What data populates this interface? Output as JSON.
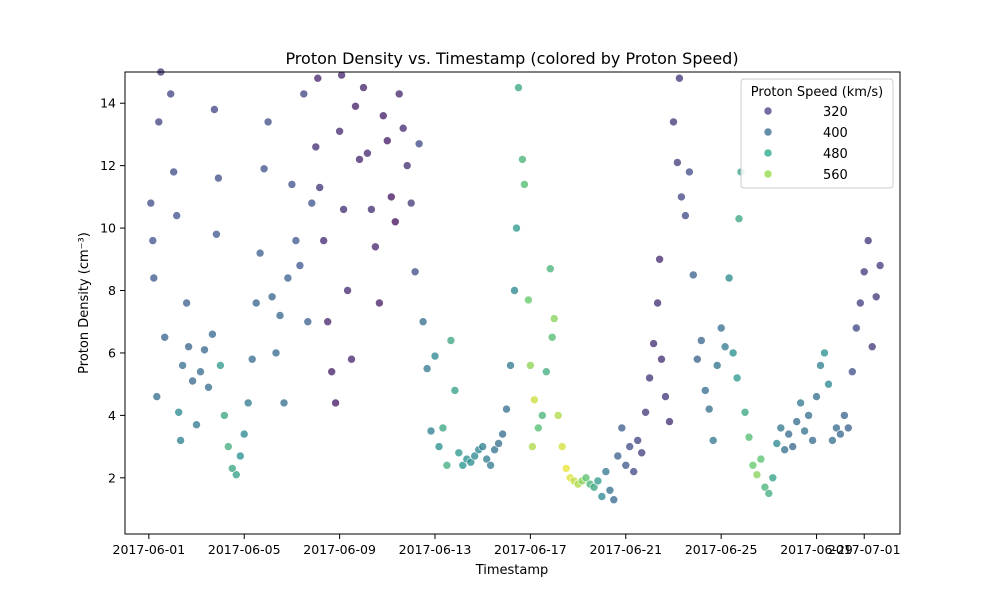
{
  "chart_data": {
    "type": "scatter",
    "title": "Proton Density vs. Timestamp (colored by Proton Speed)",
    "xlabel": "Timestamp",
    "ylabel": "Proton Density (cm⁻³)",
    "x_type": "date",
    "xlim": [
      "2017-05-31T00:00",
      "2017-07-02T12:00"
    ],
    "ylim": [
      0.2,
      15
    ],
    "x_ticks": [
      "2017-06-01",
      "2017-06-05",
      "2017-06-09",
      "2017-06-13",
      "2017-06-17",
      "2017-06-21",
      "2017-06-25",
      "2017-06-29",
      "2017-07-01"
    ],
    "y_ticks": [
      2,
      4,
      6,
      8,
      10,
      12,
      14
    ],
    "grid": false,
    "legend": {
      "title": "Proton Speed (km/s)",
      "placement": "top-right",
      "entries": [
        {
          "label": "320",
          "color": "#443983"
        },
        {
          "label": "400",
          "color": "#31688e"
        },
        {
          "label": "480",
          "color": "#21a585"
        },
        {
          "label": "560",
          "color": "#90d743"
        }
      ]
    },
    "colormap": "viridis",
    "speed_range": [
      290,
      600
    ],
    "point_opacity": 0.75,
    "points": [
      {
        "t": "2017-06-01T02:00",
        "d": 10.8,
        "s": 360
      },
      {
        "t": "2017-06-01T04:00",
        "d": 9.6,
        "s": 365
      },
      {
        "t": "2017-06-01T05:00",
        "d": 8.4,
        "s": 370
      },
      {
        "t": "2017-06-01T08:00",
        "d": 4.6,
        "s": 395
      },
      {
        "t": "2017-06-01T10:00",
        "d": 13.4,
        "s": 350
      },
      {
        "t": "2017-06-01T12:00",
        "d": 15.0,
        "s": 345
      },
      {
        "t": "2017-06-01T16:00",
        "d": 6.5,
        "s": 385
      },
      {
        "t": "2017-06-01T22:00",
        "d": 14.3,
        "s": 350
      },
      {
        "t": "2017-06-02T01:00",
        "d": 11.8,
        "s": 360
      },
      {
        "t": "2017-06-02T04:00",
        "d": 10.4,
        "s": 365
      },
      {
        "t": "2017-06-02T06:00",
        "d": 4.1,
        "s": 430
      },
      {
        "t": "2017-06-02T08:00",
        "d": 3.2,
        "s": 420
      },
      {
        "t": "2017-06-02T10:00",
        "d": 5.6,
        "s": 400
      },
      {
        "t": "2017-06-02T14:00",
        "d": 7.6,
        "s": 380
      },
      {
        "t": "2017-06-02T16:00",
        "d": 6.2,
        "s": 385
      },
      {
        "t": "2017-06-02T20:00",
        "d": 5.1,
        "s": 390
      },
      {
        "t": "2017-06-03T00:00",
        "d": 3.7,
        "s": 410
      },
      {
        "t": "2017-06-03T04:00",
        "d": 5.4,
        "s": 395
      },
      {
        "t": "2017-06-03T08:00",
        "d": 6.1,
        "s": 390
      },
      {
        "t": "2017-06-03T12:00",
        "d": 4.9,
        "s": 395
      },
      {
        "t": "2017-06-03T16:00",
        "d": 6.6,
        "s": 390
      },
      {
        "t": "2017-06-03T18:00",
        "d": 13.8,
        "s": 350
      },
      {
        "t": "2017-06-03T20:00",
        "d": 9.8,
        "s": 370
      },
      {
        "t": "2017-06-03T22:00",
        "d": 11.6,
        "s": 360
      },
      {
        "t": "2017-06-04T00:00",
        "d": 5.6,
        "s": 455
      },
      {
        "t": "2017-06-04T04:00",
        "d": 4.0,
        "s": 470
      },
      {
        "t": "2017-06-04T08:00",
        "d": 3.0,
        "s": 480
      },
      {
        "t": "2017-06-04T12:00",
        "d": 2.3,
        "s": 470
      },
      {
        "t": "2017-06-04T16:00",
        "d": 2.1,
        "s": 460
      },
      {
        "t": "2017-06-04T20:00",
        "d": 2.7,
        "s": 440
      },
      {
        "t": "2017-06-05T00:00",
        "d": 3.4,
        "s": 430
      },
      {
        "t": "2017-06-05T04:00",
        "d": 4.4,
        "s": 410
      },
      {
        "t": "2017-06-05T08:00",
        "d": 5.8,
        "s": 395
      },
      {
        "t": "2017-06-05T12:00",
        "d": 7.6,
        "s": 385
      },
      {
        "t": "2017-06-05T16:00",
        "d": 9.2,
        "s": 380
      },
      {
        "t": "2017-06-05T20:00",
        "d": 11.9,
        "s": 365
      },
      {
        "t": "2017-06-06T00:00",
        "d": 13.4,
        "s": 360
      },
      {
        "t": "2017-06-06T04:00",
        "d": 7.8,
        "s": 385
      },
      {
        "t": "2017-06-06T08:00",
        "d": 6.0,
        "s": 395
      },
      {
        "t": "2017-06-06T12:00",
        "d": 7.2,
        "s": 390
      },
      {
        "t": "2017-06-06T16:00",
        "d": 4.4,
        "s": 400
      },
      {
        "t": "2017-06-06T20:00",
        "d": 8.4,
        "s": 380
      },
      {
        "t": "2017-06-07T00:00",
        "d": 11.4,
        "s": 365
      },
      {
        "t": "2017-06-07T04:00",
        "d": 9.6,
        "s": 370
      },
      {
        "t": "2017-06-07T08:00",
        "d": 8.8,
        "s": 370
      },
      {
        "t": "2017-06-07T12:00",
        "d": 14.3,
        "s": 350
      },
      {
        "t": "2017-06-07T16:00",
        "d": 7.0,
        "s": 380
      },
      {
        "t": "2017-06-07T20:00",
        "d": 10.8,
        "s": 365
      },
      {
        "t": "2017-06-08T00:00",
        "d": 12.6,
        "s": 330
      },
      {
        "t": "2017-06-08T02:00",
        "d": 14.8,
        "s": 320
      },
      {
        "t": "2017-06-08T04:00",
        "d": 11.3,
        "s": 335
      },
      {
        "t": "2017-06-08T08:00",
        "d": 9.6,
        "s": 325
      },
      {
        "t": "2017-06-08T12:00",
        "d": 7.0,
        "s": 320
      },
      {
        "t": "2017-06-08T16:00",
        "d": 5.4,
        "s": 315
      },
      {
        "t": "2017-06-08T20:00",
        "d": 4.4,
        "s": 310
      },
      {
        "t": "2017-06-09T00:00",
        "d": 13.1,
        "s": 325
      },
      {
        "t": "2017-06-09T02:00",
        "d": 14.9,
        "s": 320
      },
      {
        "t": "2017-06-09T04:00",
        "d": 10.6,
        "s": 330
      },
      {
        "t": "2017-06-09T08:00",
        "d": 8.0,
        "s": 325
      },
      {
        "t": "2017-06-09T12:00",
        "d": 5.8,
        "s": 320
      },
      {
        "t": "2017-06-09T16:00",
        "d": 13.9,
        "s": 315
      },
      {
        "t": "2017-06-09T20:00",
        "d": 12.2,
        "s": 320
      },
      {
        "t": "2017-06-10T00:00",
        "d": 14.5,
        "s": 320
      },
      {
        "t": "2017-06-10T04:00",
        "d": 12.4,
        "s": 325
      },
      {
        "t": "2017-06-10T08:00",
        "d": 10.6,
        "s": 330
      },
      {
        "t": "2017-06-10T12:00",
        "d": 9.4,
        "s": 320
      },
      {
        "t": "2017-06-10T16:00",
        "d": 7.6,
        "s": 315
      },
      {
        "t": "2017-06-10T20:00",
        "d": 13.6,
        "s": 315
      },
      {
        "t": "2017-06-11T00:00",
        "d": 12.8,
        "s": 310
      },
      {
        "t": "2017-06-11T04:00",
        "d": 11.0,
        "s": 305
      },
      {
        "t": "2017-06-11T08:00",
        "d": 10.2,
        "s": 300
      },
      {
        "t": "2017-06-11T12:00",
        "d": 14.3,
        "s": 320
      },
      {
        "t": "2017-06-11T16:00",
        "d": 13.2,
        "s": 325
      },
      {
        "t": "2017-06-11T20:00",
        "d": 12.0,
        "s": 330
      },
      {
        "t": "2017-06-12T00:00",
        "d": 10.8,
        "s": 340
      },
      {
        "t": "2017-06-12T04:00",
        "d": 8.6,
        "s": 360
      },
      {
        "t": "2017-06-12T08:00",
        "d": 12.7,
        "s": 355
      },
      {
        "t": "2017-06-12T12:00",
        "d": 7.0,
        "s": 400
      },
      {
        "t": "2017-06-12T16:00",
        "d": 5.5,
        "s": 410
      },
      {
        "t": "2017-06-12T20:00",
        "d": 3.5,
        "s": 420
      },
      {
        "t": "2017-06-13T00:00",
        "d": 5.9,
        "s": 430
      },
      {
        "t": "2017-06-13T04:00",
        "d": 3.0,
        "s": 440
      },
      {
        "t": "2017-06-13T08:00",
        "d": 3.6,
        "s": 470
      },
      {
        "t": "2017-06-13T12:00",
        "d": 2.4,
        "s": 480
      },
      {
        "t": "2017-06-13T16:00",
        "d": 6.4,
        "s": 470
      },
      {
        "t": "2017-06-13T20:00",
        "d": 4.8,
        "s": 460
      },
      {
        "t": "2017-06-14T00:00",
        "d": 2.8,
        "s": 450
      },
      {
        "t": "2017-06-14T04:00",
        "d": 2.4,
        "s": 445
      },
      {
        "t": "2017-06-14T08:00",
        "d": 2.6,
        "s": 440
      },
      {
        "t": "2017-06-14T12:00",
        "d": 2.5,
        "s": 435
      },
      {
        "t": "2017-06-14T16:00",
        "d": 2.7,
        "s": 430
      },
      {
        "t": "2017-06-14T20:00",
        "d": 2.9,
        "s": 425
      },
      {
        "t": "2017-06-15T00:00",
        "d": 3.0,
        "s": 420
      },
      {
        "t": "2017-06-15T04:00",
        "d": 2.6,
        "s": 415
      },
      {
        "t": "2017-06-15T08:00",
        "d": 2.4,
        "s": 410
      },
      {
        "t": "2017-06-15T12:00",
        "d": 2.9,
        "s": 405
      },
      {
        "t": "2017-06-15T16:00",
        "d": 3.1,
        "s": 400
      },
      {
        "t": "2017-06-15T20:00",
        "d": 3.4,
        "s": 395
      },
      {
        "t": "2017-06-16T00:00",
        "d": 4.2,
        "s": 400
      },
      {
        "t": "2017-06-16T04:00",
        "d": 5.6,
        "s": 410
      },
      {
        "t": "2017-06-16T08:00",
        "d": 8.0,
        "s": 430
      },
      {
        "t": "2017-06-16T10:00",
        "d": 10.0,
        "s": 450
      },
      {
        "t": "2017-06-16T12:00",
        "d": 14.5,
        "s": 470
      },
      {
        "t": "2017-06-16T16:00",
        "d": 12.2,
        "s": 490
      },
      {
        "t": "2017-06-16T18:00",
        "d": 11.4,
        "s": 500
      },
      {
        "t": "2017-06-16T22:00",
        "d": 7.7,
        "s": 520
      },
      {
        "t": "2017-06-17T00:00",
        "d": 5.6,
        "s": 545
      },
      {
        "t": "2017-06-17T02:00",
        "d": 3.0,
        "s": 560
      },
      {
        "t": "2017-06-17T04:00",
        "d": 4.5,
        "s": 575
      },
      {
        "t": "2017-06-17T08:00",
        "d": 3.6,
        "s": 500
      },
      {
        "t": "2017-06-17T12:00",
        "d": 4.0,
        "s": 490
      },
      {
        "t": "2017-06-17T16:00",
        "d": 5.4,
        "s": 480
      },
      {
        "t": "2017-06-17T20:00",
        "d": 8.7,
        "s": 490
      },
      {
        "t": "2017-06-17T22:00",
        "d": 6.5,
        "s": 500
      },
      {
        "t": "2017-06-18T00:00",
        "d": 7.1,
        "s": 540
      },
      {
        "t": "2017-06-18T04:00",
        "d": 4.0,
        "s": 560
      },
      {
        "t": "2017-06-18T08:00",
        "d": 3.0,
        "s": 580
      },
      {
        "t": "2017-06-18T12:00",
        "d": 2.3,
        "s": 590
      },
      {
        "t": "2017-06-18T16:00",
        "d": 2.0,
        "s": 585
      },
      {
        "t": "2017-06-18T20:00",
        "d": 1.9,
        "s": 570
      },
      {
        "t": "2017-06-19T00:00",
        "d": 1.8,
        "s": 560
      },
      {
        "t": "2017-06-19T04:00",
        "d": 1.9,
        "s": 540
      },
      {
        "t": "2017-06-19T08:00",
        "d": 2.0,
        "s": 510
      },
      {
        "t": "2017-06-19T12:00",
        "d": 1.8,
        "s": 490
      },
      {
        "t": "2017-06-19T16:00",
        "d": 1.7,
        "s": 470
      },
      {
        "t": "2017-06-19T20:00",
        "d": 1.9,
        "s": 455
      },
      {
        "t": "2017-06-20T00:00",
        "d": 1.4,
        "s": 430
      },
      {
        "t": "2017-06-20T04:00",
        "d": 2.2,
        "s": 410
      },
      {
        "t": "2017-06-20T08:00",
        "d": 1.6,
        "s": 400
      },
      {
        "t": "2017-06-20T12:00",
        "d": 1.3,
        "s": 390
      },
      {
        "t": "2017-06-20T16:00",
        "d": 2.7,
        "s": 380
      },
      {
        "t": "2017-06-20T20:00",
        "d": 3.6,
        "s": 375
      },
      {
        "t": "2017-06-21T00:00",
        "d": 2.4,
        "s": 370
      },
      {
        "t": "2017-06-21T04:00",
        "d": 3.0,
        "s": 360
      },
      {
        "t": "2017-06-21T08:00",
        "d": 2.2,
        "s": 355
      },
      {
        "t": "2017-06-21T12:00",
        "d": 3.2,
        "s": 350
      },
      {
        "t": "2017-06-21T16:00",
        "d": 2.8,
        "s": 345
      },
      {
        "t": "2017-06-21T20:00",
        "d": 4.1,
        "s": 340
      },
      {
        "t": "2017-06-22T00:00",
        "d": 5.2,
        "s": 335
      },
      {
        "t": "2017-06-22T04:00",
        "d": 6.3,
        "s": 330
      },
      {
        "t": "2017-06-22T08:00",
        "d": 7.6,
        "s": 330
      },
      {
        "t": "2017-06-22T10:00",
        "d": 9.0,
        "s": 325
      },
      {
        "t": "2017-06-22T12:00",
        "d": 5.8,
        "s": 330
      },
      {
        "t": "2017-06-22T16:00",
        "d": 4.6,
        "s": 335
      },
      {
        "t": "2017-06-22T20:00",
        "d": 3.8,
        "s": 330
      },
      {
        "t": "2017-06-23T00:00",
        "d": 13.4,
        "s": 340
      },
      {
        "t": "2017-06-23T04:00",
        "d": 12.1,
        "s": 345
      },
      {
        "t": "2017-06-23T06:00",
        "d": 14.8,
        "s": 335
      },
      {
        "t": "2017-06-23T08:00",
        "d": 11.0,
        "s": 350
      },
      {
        "t": "2017-06-23T12:00",
        "d": 10.4,
        "s": 355
      },
      {
        "t": "2017-06-23T16:00",
        "d": 11.8,
        "s": 360
      },
      {
        "t": "2017-06-23T20:00",
        "d": 8.5,
        "s": 380
      },
      {
        "t": "2017-06-24T00:00",
        "d": 5.8,
        "s": 380
      },
      {
        "t": "2017-06-24T04:00",
        "d": 6.4,
        "s": 385
      },
      {
        "t": "2017-06-24T08:00",
        "d": 4.8,
        "s": 395
      },
      {
        "t": "2017-06-24T12:00",
        "d": 4.2,
        "s": 400
      },
      {
        "t": "2017-06-24T16:00",
        "d": 3.2,
        "s": 410
      },
      {
        "t": "2017-06-24T20:00",
        "d": 5.6,
        "s": 405
      },
      {
        "t": "2017-06-25T00:00",
        "d": 6.8,
        "s": 400
      },
      {
        "t": "2017-06-25T04:00",
        "d": 6.2,
        "s": 410
      },
      {
        "t": "2017-06-25T08:00",
        "d": 8.4,
        "s": 430
      },
      {
        "t": "2017-06-25T12:00",
        "d": 6.0,
        "s": 440
      },
      {
        "t": "2017-06-25T16:00",
        "d": 5.2,
        "s": 450
      },
      {
        "t": "2017-06-25T18:00",
        "d": 10.3,
        "s": 470
      },
      {
        "t": "2017-06-25T20:00",
        "d": 11.8,
        "s": 460
      },
      {
        "t": "2017-06-26T00:00",
        "d": 4.1,
        "s": 470
      },
      {
        "t": "2017-06-26T04:00",
        "d": 3.3,
        "s": 500
      },
      {
        "t": "2017-06-26T08:00",
        "d": 2.4,
        "s": 520
      },
      {
        "t": "2017-06-26T12:00",
        "d": 2.1,
        "s": 540
      },
      {
        "t": "2017-06-26T16:00",
        "d": 2.6,
        "s": 510
      },
      {
        "t": "2017-06-26T20:00",
        "d": 1.7,
        "s": 490
      },
      {
        "t": "2017-06-27T00:00",
        "d": 1.5,
        "s": 480
      },
      {
        "t": "2017-06-27T04:00",
        "d": 2.0,
        "s": 460
      },
      {
        "t": "2017-06-27T08:00",
        "d": 3.1,
        "s": 430
      },
      {
        "t": "2017-06-27T12:00",
        "d": 3.6,
        "s": 410
      },
      {
        "t": "2017-06-27T16:00",
        "d": 2.9,
        "s": 400
      },
      {
        "t": "2017-06-27T20:00",
        "d": 3.4,
        "s": 395
      },
      {
        "t": "2017-06-28T00:00",
        "d": 3.0,
        "s": 390
      },
      {
        "t": "2017-06-28T04:00",
        "d": 3.8,
        "s": 400
      },
      {
        "t": "2017-06-28T08:00",
        "d": 4.4,
        "s": 410
      },
      {
        "t": "2017-06-28T12:00",
        "d": 3.5,
        "s": 405
      },
      {
        "t": "2017-06-28T16:00",
        "d": 4.0,
        "s": 400
      },
      {
        "t": "2017-06-28T20:00",
        "d": 3.2,
        "s": 395
      },
      {
        "t": "2017-06-29T00:00",
        "d": 4.6,
        "s": 400
      },
      {
        "t": "2017-06-29T04:00",
        "d": 5.6,
        "s": 420
      },
      {
        "t": "2017-06-29T08:00",
        "d": 6.0,
        "s": 440
      },
      {
        "t": "2017-06-29T12:00",
        "d": 5.0,
        "s": 430
      },
      {
        "t": "2017-06-29T16:00",
        "d": 3.2,
        "s": 400
      },
      {
        "t": "2017-06-29T20:00",
        "d": 3.6,
        "s": 395
      },
      {
        "t": "2017-06-30T00:00",
        "d": 3.4,
        "s": 390
      },
      {
        "t": "2017-06-30T04:00",
        "d": 4.0,
        "s": 385
      },
      {
        "t": "2017-06-30T08:00",
        "d": 3.6,
        "s": 380
      },
      {
        "t": "2017-06-30T12:00",
        "d": 5.4,
        "s": 360
      },
      {
        "t": "2017-06-30T16:00",
        "d": 6.8,
        "s": 350
      },
      {
        "t": "2017-06-30T20:00",
        "d": 7.6,
        "s": 345
      },
      {
        "t": "2017-07-01T00:00",
        "d": 8.6,
        "s": 340
      },
      {
        "t": "2017-07-01T04:00",
        "d": 9.6,
        "s": 335
      },
      {
        "t": "2017-07-01T08:00",
        "d": 6.2,
        "s": 340
      },
      {
        "t": "2017-07-01T12:00",
        "d": 7.8,
        "s": 340
      },
      {
        "t": "2017-07-01T16:00",
        "d": 8.8,
        "s": 345
      }
    ]
  }
}
